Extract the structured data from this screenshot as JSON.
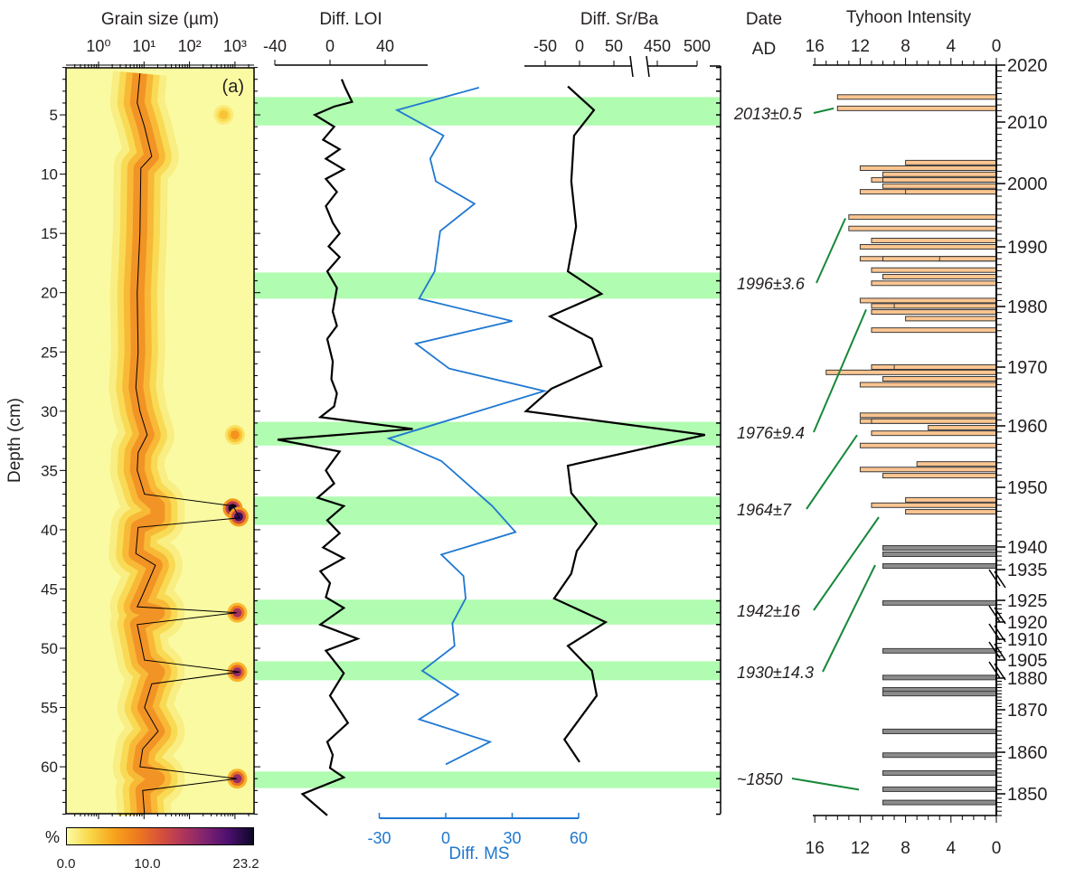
{
  "chart_data": [
    {
      "id": "grain-size",
      "type": "heatmap",
      "title": "Grain size (µm)",
      "x_ticks": [
        "10⁰",
        "10¹",
        "10²",
        "10³"
      ],
      "x_tick_log": [
        0,
        1,
        2,
        3
      ],
      "panel_label": "(a)",
      "colorbar": {
        "label": "%",
        "ticks": [
          "0.0",
          "10.0",
          "23.2"
        ],
        "range": [
          0,
          23.2
        ]
      },
      "median_line": [
        [
          1.5,
          0.91
        ],
        [
          4,
          0.85
        ],
        [
          6,
          1.01
        ],
        [
          8.5,
          1.17
        ],
        [
          9.5,
          0.93
        ],
        [
          15,
          0.91
        ],
        [
          20,
          0.85
        ],
        [
          25,
          0.87
        ],
        [
          28,
          0.82
        ],
        [
          30,
          0.91
        ],
        [
          32,
          1.07
        ],
        [
          33.5,
          0.87
        ],
        [
          35,
          0.85
        ],
        [
          37,
          1.01
        ],
        [
          38,
          2.96
        ],
        [
          39,
          3.1
        ],
        [
          39.8,
          0.87
        ],
        [
          42,
          0.82
        ],
        [
          43,
          1.25
        ],
        [
          45.5,
          0.97
        ],
        [
          46.5,
          0.85
        ],
        [
          47,
          3.04
        ],
        [
          48,
          0.85
        ],
        [
          51,
          1.01
        ],
        [
          52,
          3.1
        ],
        [
          53,
          1.17
        ],
        [
          55,
          1.01
        ],
        [
          57,
          1.31
        ],
        [
          58.5,
          0.97
        ],
        [
          60,
          0.91
        ],
        [
          61,
          3.04
        ],
        [
          62,
          0.97
        ],
        [
          64,
          1.01
        ]
      ],
      "hotspots": [
        {
          "depth": 38.2,
          "log": 2.95,
          "pct": 23.2
        },
        {
          "depth": 38.9,
          "log": 3.08,
          "pct": 21
        },
        {
          "depth": 47.0,
          "log": 3.05,
          "pct": 15
        },
        {
          "depth": 52.0,
          "log": 3.05,
          "pct": 16
        },
        {
          "depth": 61.0,
          "log": 3.05,
          "pct": 16
        },
        {
          "depth": 32.0,
          "log": 3.0,
          "pct": 7
        },
        {
          "depth": 5.0,
          "log": 2.75,
          "pct": 4
        }
      ]
    },
    {
      "id": "loi",
      "type": "line",
      "title": "Diff. LOI",
      "ticks": [
        -40,
        0,
        40
      ],
      "xlim": [
        -40,
        70
      ],
      "points": [
        [
          2.0,
          8.5
        ],
        [
          2.7,
          11
        ],
        [
          3.9,
          16
        ],
        [
          4.3,
          3
        ],
        [
          5.0,
          -11
        ],
        [
          6.0,
          3
        ],
        [
          7.1,
          -5
        ],
        [
          7.9,
          7
        ],
        [
          8.7,
          -3
        ],
        [
          9.6,
          10
        ],
        [
          10.4,
          -3
        ],
        [
          11.5,
          5
        ],
        [
          12.7,
          -3
        ],
        [
          14.1,
          2
        ],
        [
          15.0,
          7
        ],
        [
          16.1,
          -1
        ],
        [
          17.0,
          7
        ],
        [
          18.2,
          -2
        ],
        [
          19.6,
          5
        ],
        [
          21.6,
          2
        ],
        [
          22.8,
          5
        ],
        [
          23.9,
          -2
        ],
        [
          25.8,
          2
        ],
        [
          27.3,
          1
        ],
        [
          28.5,
          5
        ],
        [
          29.6,
          3
        ],
        [
          30.5,
          -7
        ],
        [
          31.5,
          60
        ],
        [
          32.4,
          -38
        ],
        [
          33.4,
          7
        ],
        [
          35.0,
          -3
        ],
        [
          36.1,
          3
        ],
        [
          37.3,
          -9
        ],
        [
          38.0,
          10
        ],
        [
          39.2,
          -2
        ],
        [
          40.3,
          7
        ],
        [
          41.5,
          -5
        ],
        [
          42.4,
          10
        ],
        [
          43.5,
          -7
        ],
        [
          44.5,
          0
        ],
        [
          45.7,
          -3
        ],
        [
          46.6,
          10
        ],
        [
          48.0,
          -7
        ],
        [
          49.2,
          20
        ],
        [
          50.2,
          -3
        ],
        [
          52.1,
          10
        ],
        [
          54.0,
          0
        ],
        [
          56.3,
          13
        ],
        [
          57.9,
          -2
        ],
        [
          59.0,
          2
        ],
        [
          60.1,
          0
        ],
        [
          60.9,
          10
        ],
        [
          62.3,
          -20
        ],
        [
          63.2,
          -11
        ],
        [
          64.1,
          -2
        ]
      ]
    },
    {
      "id": "ms",
      "type": "line",
      "xlabel": "Diff. MS",
      "ticks": [
        -30,
        0,
        30,
        60
      ],
      "xlim": [
        -30,
        60
      ],
      "points": [
        [
          2.7,
          15
        ],
        [
          4.6,
          -22
        ],
        [
          6.75,
          -1
        ],
        [
          8.7,
          -7
        ],
        [
          10.6,
          -4.5
        ],
        [
          12.5,
          13
        ],
        [
          14.8,
          -2.5
        ],
        [
          18.2,
          -5
        ],
        [
          20.5,
          -12
        ],
        [
          22.4,
          30
        ],
        [
          24.3,
          -13.5
        ],
        [
          26.4,
          1.5
        ],
        [
          28.3,
          44.5
        ],
        [
          32.3,
          -25.7
        ],
        [
          34.2,
          -2
        ],
        [
          38.0,
          21
        ],
        [
          40.2,
          31.5
        ],
        [
          42.1,
          -2
        ],
        [
          43.9,
          8
        ],
        [
          45.8,
          9
        ],
        [
          47.9,
          3
        ],
        [
          49.8,
          4
        ],
        [
          51.9,
          -10.6
        ],
        [
          53.9,
          5.7
        ],
        [
          56.0,
          -12
        ],
        [
          57.9,
          20
        ],
        [
          59.8,
          0
        ]
      ]
    },
    {
      "id": "sr-ba",
      "type": "line",
      "title": "Diff. Sr/Ba",
      "ticks": [
        -50,
        0,
        50,
        450,
        500
      ],
      "axis_break": [
        75,
        440
      ],
      "points": [
        [
          2.6,
          -17
        ],
        [
          4.6,
          21
        ],
        [
          6.75,
          -8
        ],
        [
          10.6,
          -12
        ],
        [
          14.4,
          -5
        ],
        [
          18.2,
          -17
        ],
        [
          20.1,
          32
        ],
        [
          22.0,
          -43
        ],
        [
          23.9,
          18
        ],
        [
          26.2,
          32
        ],
        [
          28.1,
          -41
        ],
        [
          30.0,
          -78
        ],
        [
          32.0,
          510
        ],
        [
          34.6,
          -17
        ],
        [
          36.9,
          -12
        ],
        [
          39.5,
          25
        ],
        [
          41.8,
          -4
        ],
        [
          43.7,
          -12
        ],
        [
          45.8,
          -37
        ],
        [
          47.8,
          38
        ],
        [
          49.8,
          -17
        ],
        [
          51.9,
          18
        ],
        [
          54.0,
          25
        ],
        [
          57.7,
          -22
        ],
        [
          59.6,
          0
        ]
      ]
    },
    {
      "id": "typhoon",
      "type": "bar",
      "title": "Tyhoon Intensity",
      "date_header": [
        "Date",
        "AD"
      ],
      "x_ticks": [
        16,
        12,
        8,
        4,
        0
      ],
      "year_ticks": [
        2020,
        2010,
        2000,
        1990,
        1980,
        1970,
        1960,
        1950,
        1940,
        1935,
        1925,
        1920,
        1910,
        1905,
        1880,
        1870,
        1860,
        1850
      ],
      "bars": [
        [
          2014.4,
          14,
          "modern"
        ],
        [
          2012.4,
          14,
          "modern"
        ],
        [
          2003.4,
          8,
          "modern"
        ],
        [
          2002.5,
          12,
          "modern"
        ],
        [
          2001.5,
          10,
          "modern"
        ],
        [
          2000.6,
          11,
          "modern"
        ],
        [
          2000.6,
          10,
          "modern"
        ],
        [
          1999.6,
          10,
          "modern"
        ],
        [
          1998.7,
          12,
          "modern"
        ],
        [
          1998.7,
          8,
          "modern"
        ],
        [
          1994.7,
          13,
          "modern"
        ],
        [
          1992.9,
          13,
          "modern"
        ],
        [
          1991,
          11,
          "modern"
        ],
        [
          1990,
          12,
          "modern"
        ],
        [
          1988,
          12,
          "modern"
        ],
        [
          1988,
          10,
          "modern"
        ],
        [
          1988,
          5,
          "modern"
        ],
        [
          1986.1,
          11,
          "modern"
        ],
        [
          1985,
          10,
          "modern"
        ],
        [
          1983.9,
          11,
          "modern"
        ],
        [
          1981,
          12,
          "modern"
        ],
        [
          1980.1,
          11,
          "modern"
        ],
        [
          1980.1,
          9,
          "modern"
        ],
        [
          1979.1,
          11,
          "modern"
        ],
        [
          1978,
          8,
          "modern"
        ],
        [
          1976.1,
          11,
          "modern"
        ],
        [
          1970,
          11,
          "modern"
        ],
        [
          1970,
          9,
          "modern"
        ],
        [
          1969.1,
          15,
          "modern"
        ],
        [
          1968,
          10,
          "modern"
        ],
        [
          1967,
          12,
          "modern"
        ],
        [
          1961.8,
          12,
          "modern"
        ],
        [
          1960.8,
          12,
          "modern"
        ],
        [
          1960.8,
          11,
          "modern"
        ],
        [
          1959.7,
          6,
          "modern"
        ],
        [
          1958.8,
          11,
          "modern"
        ],
        [
          1956.8,
          12,
          "modern"
        ],
        [
          1953.8,
          7,
          "modern"
        ],
        [
          1952.9,
          12,
          "modern"
        ],
        [
          1951.9,
          10,
          "modern"
        ],
        [
          1947.9,
          8,
          "modern"
        ],
        [
          1947,
          11,
          "modern"
        ],
        [
          1945.9,
          8,
          "modern"
        ],
        [
          1939.8,
          10,
          "historic"
        ],
        [
          1938.4,
          10,
          "historic"
        ],
        [
          1935.8,
          10,
          "historic"
        ],
        [
          1924.4,
          10,
          "historic"
        ],
        [
          1907.2,
          10,
          "historic"
        ],
        [
          1880.8,
          10,
          "historic"
        ],
        [
          1876.3,
          10,
          "historic"
        ],
        [
          1875.1,
          10,
          "historic"
        ],
        [
          1864.9,
          10,
          "historic"
        ],
        [
          1859.3,
          10,
          "historic"
        ],
        [
          1855,
          10,
          "historic"
        ],
        [
          1851.1,
          10,
          "historic"
        ],
        [
          1848,
          10,
          "historic"
        ]
      ],
      "annotations": [
        {
          "label": "2013±0.5",
          "points_to_year": 2012.4
        },
        {
          "label": "1996±3.6",
          "points_to_year": 1994.5
        },
        {
          "label": "1976±9.4",
          "points_to_year": 1979.5
        },
        {
          "label": "1964±7",
          "points_to_year": 1958.5
        },
        {
          "label": "1942±16",
          "points_to_year": 1945
        },
        {
          "label": "1930±14.3",
          "points_to_year": 1936
        },
        {
          "label": "~1850",
          "points_to_year": 1851
        }
      ]
    }
  ],
  "depth_axis": {
    "label": "Depth (cm)",
    "ticks": [
      5,
      10,
      15,
      20,
      25,
      30,
      35,
      40,
      45,
      50,
      55,
      60
    ],
    "range": [
      1,
      64
    ]
  },
  "highlight_bands": [
    [
      3.5,
      5.9
    ],
    [
      18.3,
      20.5
    ],
    [
      30.9,
      32.9
    ],
    [
      37.2,
      39.6
    ],
    [
      45.9,
      48.0
    ],
    [
      51.1,
      52.7
    ],
    [
      60.4,
      61.8
    ]
  ],
  "colors": {
    "band": "#b0fcb0",
    "ms": "#1f78d1",
    "modern_bar": "#fcc590",
    "historic_bar": "#8c8c8c",
    "leader": "#17883a",
    "heat_bg": "#fafaa2"
  }
}
